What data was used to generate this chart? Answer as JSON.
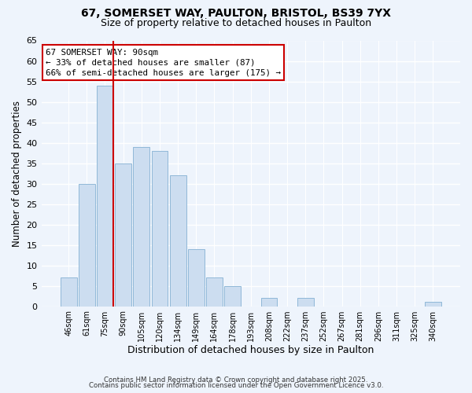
{
  "title1": "67, SOMERSET WAY, PAULTON, BRISTOL, BS39 7YX",
  "title2": "Size of property relative to detached houses in Paulton",
  "xlabel": "Distribution of detached houses by size in Paulton",
  "ylabel": "Number of detached properties",
  "bar_labels": [
    "46sqm",
    "61sqm",
    "75sqm",
    "90sqm",
    "105sqm",
    "120sqm",
    "134sqm",
    "149sqm",
    "164sqm",
    "178sqm",
    "193sqm",
    "208sqm",
    "222sqm",
    "237sqm",
    "252sqm",
    "267sqm",
    "281sqm",
    "296sqm",
    "311sqm",
    "325sqm",
    "340sqm"
  ],
  "bar_values": [
    7,
    30,
    54,
    35,
    39,
    38,
    32,
    14,
    7,
    5,
    0,
    2,
    0,
    2,
    0,
    0,
    0,
    0,
    0,
    0,
    1
  ],
  "bar_color": "#ccddf0",
  "bar_edge_color": "#90b8d8",
  "property_line_index": 2,
  "annotation_title": "67 SOMERSET WAY: 90sqm",
  "annotation_line1": "← 33% of detached houses are smaller (87)",
  "annotation_line2": "66% of semi-detached houses are larger (175) →",
  "annotation_box_facecolor": "#ffffff",
  "annotation_box_edgecolor": "#cc0000",
  "property_line_color": "#cc0000",
  "ylim": [
    0,
    65
  ],
  "yticks": [
    0,
    5,
    10,
    15,
    20,
    25,
    30,
    35,
    40,
    45,
    50,
    55,
    60,
    65
  ],
  "footer1": "Contains HM Land Registry data © Crown copyright and database right 2025.",
  "footer2": "Contains public sector information licensed under the Open Government Licence v3.0.",
  "background_color": "#eef4fc",
  "grid_color": "#ffffff",
  "title1_fontsize": 10,
  "title2_fontsize": 9
}
